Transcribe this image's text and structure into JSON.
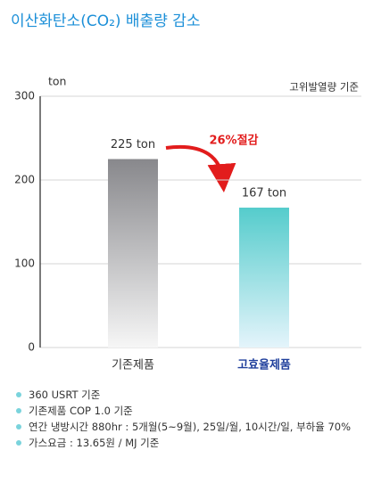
{
  "chart_data": {
    "type": "bar",
    "title": "이산화탄소(CO₂) 배출량 감소",
    "y_axis_label": "ton",
    "basis_note": "고위발열량 기준",
    "categories": [
      "기존제품",
      "고효율제품"
    ],
    "values": [
      225,
      167
    ],
    "value_labels": [
      "225 ton",
      "167 ton"
    ],
    "colors": [
      "#88888c",
      "#55cccc"
    ],
    "annotation": "26%절감",
    "ylim": [
      0,
      300
    ],
    "yticks": [
      0,
      100,
      200,
      300
    ],
    "grid": true
  },
  "notes": [
    "360 USRT 기준",
    "기존제품 COP 1.0 기준",
    "연간 냉방시간 880hr : 5개월(5~9월), 25일/월, 10시간/일, 부하율 70%",
    "가스요금 : 13.65원 / MJ 기준"
  ]
}
